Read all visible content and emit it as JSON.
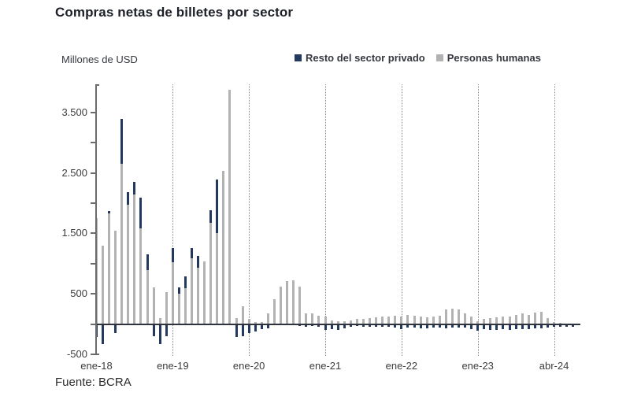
{
  "chart_data": {
    "type": "bar",
    "stacked": true,
    "title": "Compras netas de billetes por sector",
    "ylabel": "Millones de USD",
    "source": "Fuente: BCRA",
    "legend_position": "top",
    "grid": "vertical-dotted-yearly",
    "ylim": [
      -500,
      3970
    ],
    "colors": {
      "resto": "#24395e",
      "personas": "#b2b2b3"
    },
    "series": [
      {
        "key": "resto",
        "name": "Resto del sector privado",
        "color": "#24395e"
      },
      {
        "key": "personas",
        "name": "Personas humanas",
        "color": "#b2b2b3"
      }
    ],
    "y_ticks": [
      {
        "value": 3500,
        "label": "3.500"
      },
      {
        "value": 2500,
        "label": "2.500"
      },
      {
        "value": 1500,
        "label": "1.500"
      },
      {
        "value": 500,
        "label": "500"
      },
      {
        "value": -500,
        "label": "-500"
      }
    ],
    "y_minor_tick_step": 500,
    "x_ticks": [
      {
        "index": 0,
        "label": "ene-18"
      },
      {
        "index": 12,
        "label": "ene-19"
      },
      {
        "index": 24,
        "label": "ene-20"
      },
      {
        "index": 36,
        "label": "ene-21"
      },
      {
        "index": 48,
        "label": "ene-22"
      },
      {
        "index": 60,
        "label": "ene-23"
      },
      {
        "index": 72,
        "label": "abr-24"
      }
    ],
    "months": [
      {
        "m": "ene-18",
        "personas": 1750,
        "resto": -220
      },
      {
        "m": "feb-18",
        "personas": 1300,
        "resto": -330
      },
      {
        "m": "mar-18",
        "personas": 1830,
        "resto": 40
      },
      {
        "m": "abr-18",
        "personas": 1550,
        "resto": -150
      },
      {
        "m": "may-18",
        "personas": 2650,
        "resto": 750
      },
      {
        "m": "jun-18",
        "personas": 1980,
        "resto": 200
      },
      {
        "m": "jul-18",
        "personas": 2150,
        "resto": 200
      },
      {
        "m": "ago-18",
        "personas": 1590,
        "resto": 500
      },
      {
        "m": "sep-18",
        "personas": 890,
        "resto": 260
      },
      {
        "m": "oct-18",
        "personas": 610,
        "resto": -200
      },
      {
        "m": "nov-18",
        "personas": 100,
        "resto": -330
      },
      {
        "m": "dic-18",
        "personas": 530,
        "resto": -200
      },
      {
        "m": "ene-19",
        "personas": 1020,
        "resto": 240
      },
      {
        "m": "feb-19",
        "personas": 500,
        "resto": 110
      },
      {
        "m": "mar-19",
        "personas": 590,
        "resto": 200
      },
      {
        "m": "abr-19",
        "personas": 1090,
        "resto": 170
      },
      {
        "m": "may-19",
        "personas": 930,
        "resto": 200
      },
      {
        "m": "jun-19",
        "personas": 1040,
        "resto": 0
      },
      {
        "m": "jul-19",
        "personas": 1670,
        "resto": 220
      },
      {
        "m": "ago-19",
        "personas": 1500,
        "resto": 890
      },
      {
        "m": "sep-19",
        "personas": 2540,
        "resto": 0
      },
      {
        "m": "oct-19",
        "personas": 3880,
        "resto": 0
      },
      {
        "m": "nov-19",
        "personas": 100,
        "resto": -220
      },
      {
        "m": "dic-19",
        "personas": 290,
        "resto": -200
      },
      {
        "m": "ene-20",
        "personas": 80,
        "resto": -150
      },
      {
        "m": "feb-20",
        "personas": 30,
        "resto": -130
      },
      {
        "m": "mar-20",
        "personas": 30,
        "resto": -80
      },
      {
        "m": "abr-20",
        "personas": 170,
        "resto": -70
      },
      {
        "m": "may-20",
        "personas": 410,
        "resto": -20
      },
      {
        "m": "jun-20",
        "personas": 620,
        "resto": 0
      },
      {
        "m": "jul-20",
        "personas": 710,
        "resto": 0
      },
      {
        "m": "ago-20",
        "personas": 720,
        "resto": 0
      },
      {
        "m": "sep-20",
        "personas": 620,
        "resto": -30
      },
      {
        "m": "oct-20",
        "personas": 170,
        "resto": -50
      },
      {
        "m": "nov-20",
        "personas": 170,
        "resto": -30
      },
      {
        "m": "dic-20",
        "personas": 140,
        "resto": -40
      },
      {
        "m": "ene-21",
        "personas": 120,
        "resto": -100
      },
      {
        "m": "feb-21",
        "personas": 60,
        "resto": -90
      },
      {
        "m": "mar-21",
        "personas": 50,
        "resto": -100
      },
      {
        "m": "abr-21",
        "personas": 40,
        "resto": -70
      },
      {
        "m": "may-21",
        "personas": 60,
        "resto": -40
      },
      {
        "m": "jun-21",
        "personas": 80,
        "resto": -35
      },
      {
        "m": "jul-21",
        "personas": 90,
        "resto": -40
      },
      {
        "m": "ago-21",
        "personas": 100,
        "resto": -45
      },
      {
        "m": "sep-21",
        "personas": 110,
        "resto": -40
      },
      {
        "m": "oct-21",
        "personas": 120,
        "resto": -45
      },
      {
        "m": "nov-21",
        "personas": 130,
        "resto": -50
      },
      {
        "m": "dic-21",
        "personas": 140,
        "resto": -55
      },
      {
        "m": "ene-22",
        "personas": 130,
        "resto": -90
      },
      {
        "m": "feb-22",
        "personas": 150,
        "resto": -65
      },
      {
        "m": "mar-22",
        "personas": 140,
        "resto": -60
      },
      {
        "m": "abr-22",
        "personas": 120,
        "resto": -70
      },
      {
        "m": "may-22",
        "personas": 110,
        "resto": -75
      },
      {
        "m": "jun-22",
        "personas": 120,
        "resto": -60
      },
      {
        "m": "jul-22",
        "personas": 140,
        "resto": -55
      },
      {
        "m": "ago-22",
        "personas": 240,
        "resto": -70
      },
      {
        "m": "sep-22",
        "personas": 260,
        "resto": -55
      },
      {
        "m": "oct-22",
        "personas": 240,
        "resto": -60
      },
      {
        "m": "nov-22",
        "personas": 170,
        "resto": -65
      },
      {
        "m": "dic-22",
        "personas": 130,
        "resto": -80
      },
      {
        "m": "ene-23",
        "personas": 50,
        "resto": -110
      },
      {
        "m": "feb-23",
        "personas": 90,
        "resto": -90
      },
      {
        "m": "mar-23",
        "personas": 100,
        "resto": -95
      },
      {
        "m": "abr-23",
        "personas": 110,
        "resto": -100
      },
      {
        "m": "may-23",
        "personas": 120,
        "resto": -90
      },
      {
        "m": "jun-23",
        "personas": 130,
        "resto": -95
      },
      {
        "m": "jul-23",
        "personas": 150,
        "resto": -85
      },
      {
        "m": "ago-23",
        "personas": 175,
        "resto": -90
      },
      {
        "m": "sep-23",
        "personas": 150,
        "resto": -80
      },
      {
        "m": "oct-23",
        "personas": 190,
        "resto": -75
      },
      {
        "m": "nov-23",
        "personas": 200,
        "resto": -70
      },
      {
        "m": "dic-23",
        "personas": 100,
        "resto": -60
      },
      {
        "m": "ene-24",
        "personas": 30,
        "resto": -50
      },
      {
        "m": "feb-24",
        "personas": 20,
        "resto": -45
      },
      {
        "m": "mar-24",
        "personas": 10,
        "resto": -40
      },
      {
        "m": "abr-24",
        "personas": 10,
        "resto": -45
      }
    ]
  }
}
